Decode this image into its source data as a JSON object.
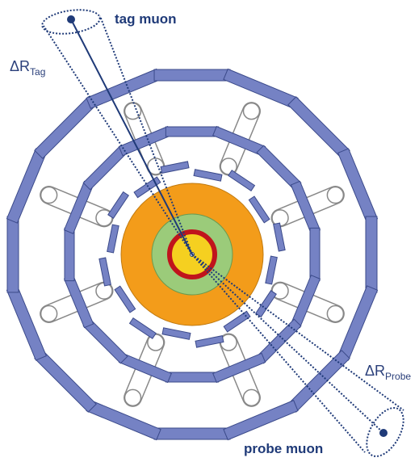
{
  "labels": {
    "tag_muon": "tag muon",
    "probe_muon": "probe muon",
    "delta_r_tag": {
      "symbol": "ΔR",
      "subscript": "Tag"
    },
    "delta_r_probe": {
      "symbol": "ΔR",
      "subscript": "Probe"
    }
  }
}
